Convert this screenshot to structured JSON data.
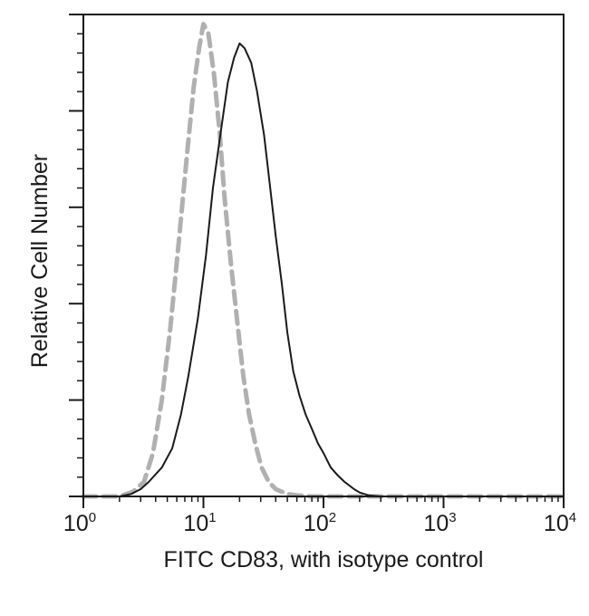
{
  "chart_data": {
    "type": "line",
    "title": "",
    "xlabel": "FITC CD83, with isotype control",
    "ylabel": "Relative Cell Number",
    "x_scale": "log",
    "xlim": [
      1,
      10000
    ],
    "ylim": [
      0,
      100
    ],
    "grid": false,
    "legend": "none",
    "x_ticks": [
      {
        "base": "10",
        "exp": "0",
        "value": 1
      },
      {
        "base": "10",
        "exp": "1",
        "value": 10
      },
      {
        "base": "10",
        "exp": "2",
        "value": 100
      },
      {
        "base": "10",
        "exp": "3",
        "value": 1000
      },
      {
        "base": "10",
        "exp": "4",
        "value": 10000
      }
    ],
    "y_major_ticks": [
      0,
      20,
      40,
      60,
      80,
      100
    ],
    "series": [
      {
        "style": "dashed",
        "color": "#b0b0b0",
        "x": [
          1,
          2,
          2.6,
          3.2,
          3.8,
          4.5,
          5.3,
          6.3,
          7.3,
          8.3,
          9.2,
          10,
          11,
          12.2,
          13.6,
          15,
          17,
          19.2,
          21.5,
          24,
          27,
          30.5,
          35,
          40,
          50,
          60,
          80,
          100,
          10000
        ],
        "y": [
          0,
          0,
          1,
          3,
          9,
          20,
          35,
          54,
          71,
          85,
          93,
          98,
          96,
          88,
          76,
          62,
          48,
          36,
          25,
          17,
          11,
          6,
          3,
          1.5,
          0.5,
          0.2,
          0,
          0,
          0
        ]
      },
      {
        "style": "solid",
        "color": "#1a1a1a",
        "x": [
          1,
          1.5,
          2,
          2.5,
          3,
          3.5,
          4.5,
          5.5,
          6.5,
          7.5,
          9,
          10.5,
          12,
          14,
          16,
          18,
          20,
          22,
          25,
          28,
          32,
          36,
          40,
          45,
          50,
          56,
          63,
          71,
          80,
          90,
          100,
          115,
          130,
          150,
          180,
          200,
          240,
          300,
          10000
        ],
        "y": [
          0,
          0,
          0,
          0.5,
          1.5,
          3,
          6,
          10,
          17,
          25,
          37,
          50,
          64,
          76,
          86,
          91,
          94,
          93,
          90,
          84,
          75,
          64,
          54,
          44,
          34,
          26,
          21,
          17,
          14,
          11,
          9,
          6,
          4.5,
          3,
          1.5,
          0.8,
          0.2,
          0,
          0
        ]
      }
    ]
  }
}
